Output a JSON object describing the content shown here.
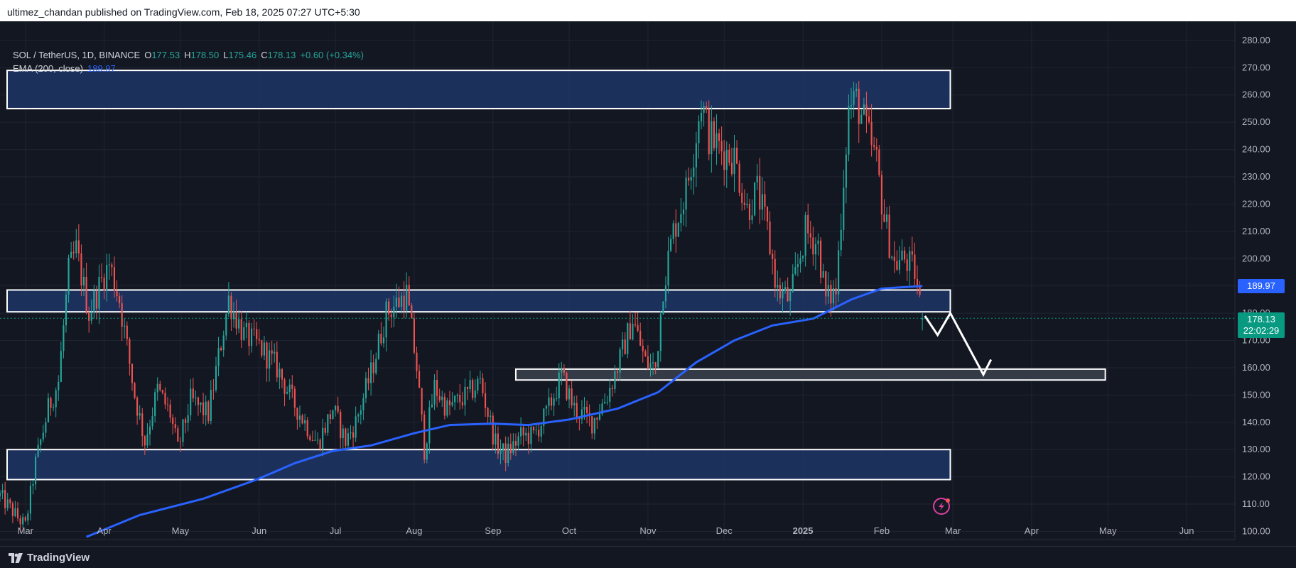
{
  "header": {
    "published_text": "ultimez_chandan published on TradingView.com, Feb 18, 2025 07:27 UTC+5:30"
  },
  "legend": {
    "symbol": "SOL / TetherUS, 1D, BINANCE",
    "o_label": "O",
    "o_value": "177.53",
    "h_label": "H",
    "h_value": "178.50",
    "l_label": "L",
    "l_value": "175.46",
    "c_label": "C",
    "c_value": "178.13",
    "change": "+0.60 (+0.34%)",
    "ema_label": "EMA (200, close)",
    "ema_value": "189.97"
  },
  "price_tags": {
    "ema": "189.97",
    "last_price": "178.13",
    "countdown": "22:02:29"
  },
  "footer": {
    "brand": "TradingView"
  },
  "colors": {
    "background": "#131722",
    "grid": "#1f2433",
    "up": "#26a69a",
    "down": "#ef5350",
    "ema": "#2962ff",
    "zone_fill": "#1e3566",
    "zone_border": "#ffffff",
    "gray_zone_fill": "#3a3e4b",
    "last_price": "#089981"
  },
  "chart_data": {
    "type": "candlestick",
    "series_name": "SOL / TetherUS",
    "ylim": [
      97,
      287
    ],
    "y_ticks": [
      100,
      110,
      120,
      130,
      140,
      150,
      160,
      170,
      180,
      190,
      200,
      210,
      220,
      230,
      240,
      250,
      260,
      270,
      280
    ],
    "x_range": [
      "2024-02-20",
      "2025-06-20"
    ],
    "x_ticks": [
      {
        "label": "Mar",
        "date": "2024-03-01"
      },
      {
        "label": "Apr",
        "date": "2024-04-01"
      },
      {
        "label": "May",
        "date": "2024-05-01"
      },
      {
        "label": "Jun",
        "date": "2024-06-01"
      },
      {
        "label": "Jul",
        "date": "2024-07-01"
      },
      {
        "label": "Aug",
        "date": "2024-08-01"
      },
      {
        "label": "Sep",
        "date": "2024-09-01"
      },
      {
        "label": "Oct",
        "date": "2024-10-01"
      },
      {
        "label": "Nov",
        "date": "2024-11-01"
      },
      {
        "label": "Dec",
        "date": "2024-12-01"
      },
      {
        "label": "2025",
        "date": "2025-01-01",
        "bold": true
      },
      {
        "label": "Feb",
        "date": "2025-02-01"
      },
      {
        "label": "Mar",
        "date": "2025-03-01"
      },
      {
        "label": "Apr",
        "date": "2025-04-01"
      },
      {
        "label": "May",
        "date": "2025-05-01"
      },
      {
        "label": "Jun",
        "date": "2025-06-01"
      }
    ],
    "price_anchors": [
      [
        "2024-02-20",
        113
      ],
      [
        "2024-02-27",
        105
      ],
      [
        "2024-03-01",
        102
      ],
      [
        "2024-03-05",
        125
      ],
      [
        "2024-03-10",
        145
      ],
      [
        "2024-03-14",
        155
      ],
      [
        "2024-03-18",
        195
      ],
      [
        "2024-03-21",
        203
      ],
      [
        "2024-03-26",
        180
      ],
      [
        "2024-03-31",
        192
      ],
      [
        "2024-04-03",
        198
      ],
      [
        "2024-04-07",
        185
      ],
      [
        "2024-04-13",
        150
      ],
      [
        "2024-04-17",
        133
      ],
      [
        "2024-04-22",
        152
      ],
      [
        "2024-04-27",
        143
      ],
      [
        "2024-04-30",
        130
      ],
      [
        "2024-05-05",
        148
      ],
      [
        "2024-05-12",
        143
      ],
      [
        "2024-05-20",
        185
      ],
      [
        "2024-05-26",
        172
      ],
      [
        "2024-06-01",
        168
      ],
      [
        "2024-06-08",
        160
      ],
      [
        "2024-06-14",
        148
      ],
      [
        "2024-06-24",
        132
      ],
      [
        "2024-06-30",
        145
      ],
      [
        "2024-07-05",
        133
      ],
      [
        "2024-07-09",
        140
      ],
      [
        "2024-07-15",
        158
      ],
      [
        "2024-07-21",
        180
      ],
      [
        "2024-07-29",
        187
      ],
      [
        "2024-08-02",
        160
      ],
      [
        "2024-08-05",
        130
      ],
      [
        "2024-08-09",
        153
      ],
      [
        "2024-08-14",
        145
      ],
      [
        "2024-08-22",
        150
      ],
      [
        "2024-08-27",
        155
      ],
      [
        "2024-09-02",
        132
      ],
      [
        "2024-09-06",
        128
      ],
      [
        "2024-09-12",
        135
      ],
      [
        "2024-09-17",
        135
      ],
      [
        "2024-09-22",
        143
      ],
      [
        "2024-09-28",
        157
      ],
      [
        "2024-10-03",
        145
      ],
      [
        "2024-10-10",
        140
      ],
      [
        "2024-10-16",
        150
      ],
      [
        "2024-10-21",
        163
      ],
      [
        "2024-10-26",
        178
      ],
      [
        "2024-10-31",
        162
      ],
      [
        "2024-11-04",
        160
      ],
      [
        "2024-11-07",
        190
      ],
      [
        "2024-11-11",
        210
      ],
      [
        "2024-11-16",
        225
      ],
      [
        "2024-11-19",
        240
      ],
      [
        "2024-11-22",
        258
      ],
      [
        "2024-11-25",
        245
      ],
      [
        "2024-11-30",
        240
      ],
      [
        "2024-12-05",
        237
      ],
      [
        "2024-12-10",
        218
      ],
      [
        "2024-12-14",
        225
      ],
      [
        "2024-12-18",
        210
      ],
      [
        "2024-12-22",
        188
      ],
      [
        "2024-12-27",
        185
      ],
      [
        "2025-01-02",
        210
      ],
      [
        "2025-01-07",
        205
      ],
      [
        "2025-01-10",
        185
      ],
      [
        "2025-01-14",
        188
      ],
      [
        "2025-01-17",
        230
      ],
      [
        "2025-01-19",
        255
      ],
      [
        "2025-01-22",
        258
      ],
      [
        "2025-01-25",
        250
      ],
      [
        "2025-01-30",
        235
      ],
      [
        "2025-02-02",
        215
      ],
      [
        "2025-02-06",
        198
      ],
      [
        "2025-02-10",
        200
      ],
      [
        "2025-02-14",
        195
      ],
      [
        "2025-02-17",
        178
      ]
    ],
    "ema_200": {
      "name": "EMA (200, close)",
      "points": [
        [
          "2024-03-25",
          98
        ],
        [
          "2024-04-15",
          106
        ],
        [
          "2024-05-10",
          112
        ],
        [
          "2024-05-31",
          119
        ],
        [
          "2024-06-15",
          125
        ],
        [
          "2024-06-30",
          129.5
        ],
        [
          "2024-07-15",
          131.5
        ],
        [
          "2024-08-01",
          136
        ],
        [
          "2024-08-15",
          139
        ],
        [
          "2024-09-01",
          139.5
        ],
        [
          "2024-09-15",
          139
        ],
        [
          "2024-10-01",
          141
        ],
        [
          "2024-10-20",
          145
        ],
        [
          "2024-11-05",
          151
        ],
        [
          "2024-11-20",
          162
        ],
        [
          "2024-12-05",
          170
        ],
        [
          "2024-12-20",
          175.5
        ],
        [
          "2025-01-05",
          178
        ],
        [
          "2025-01-20",
          185
        ],
        [
          "2025-02-01",
          189
        ],
        [
          "2025-02-17",
          189.97
        ]
      ]
    },
    "zones": [
      {
        "kind": "supply",
        "from": "2024-02-20",
        "to": "2025-02-28",
        "low": 255,
        "high": 269
      },
      {
        "kind": "support",
        "from": "2024-02-20",
        "to": "2025-02-28",
        "low": 180.5,
        "high": 188.5
      },
      {
        "kind": "demand",
        "from": "2024-02-20",
        "to": "2025-02-28",
        "low": 119,
        "high": 130
      },
      {
        "kind": "target",
        "from": "2024-09-10",
        "to": "2025-04-30",
        "low": 155.5,
        "high": 159.5
      }
    ],
    "projection_path": [
      [
        "2025-02-18",
        179
      ],
      [
        "2025-02-23",
        172
      ],
      [
        "2025-02-28",
        180
      ],
      [
        "2025-03-13",
        157.5
      ],
      [
        "2025-03-16",
        163
      ]
    ],
    "last_price": 178.13,
    "legend_placement": "top-left"
  }
}
